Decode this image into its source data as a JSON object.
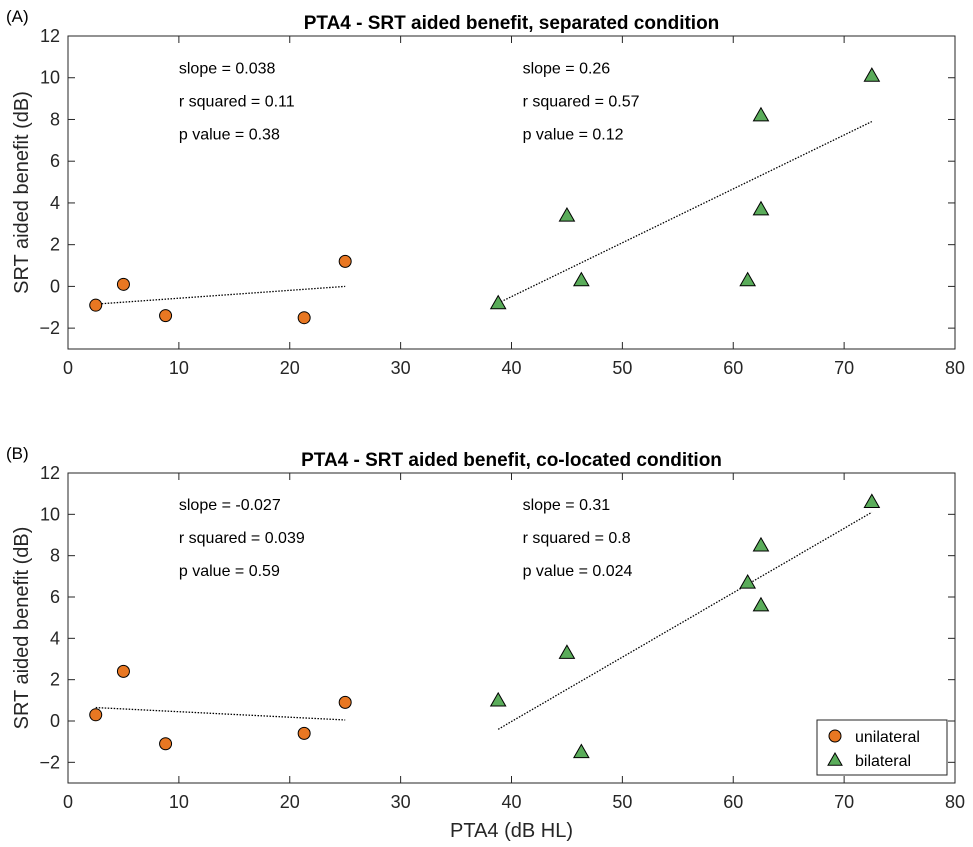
{
  "chart_data": [
    {
      "type": "scatter",
      "panel_label": "(A)",
      "title": "PTA4 - SRT aided benefit, separated condition",
      "xlabel": "",
      "ylabel": "SRT aided benefit (dB)",
      "xlim": [
        0,
        80
      ],
      "ylim": [
        -3,
        12
      ],
      "xticks": [
        0,
        10,
        20,
        30,
        40,
        50,
        60,
        70,
        80
      ],
      "yticks": [
        -2,
        0,
        2,
        4,
        6,
        8,
        10,
        12
      ],
      "grid": false,
      "series": [
        {
          "name": "unilateral",
          "marker": "circle",
          "color": "#e87722",
          "points": [
            [
              2.5,
              -0.9
            ],
            [
              5,
              0.1
            ],
            [
              8.8,
              -1.4
            ],
            [
              21.3,
              -1.5
            ],
            [
              25,
              1.2
            ]
          ],
          "fit": {
            "x": [
              2.5,
              25
            ],
            "y": [
              -0.85,
              0.0
            ]
          },
          "stats": [
            "slope = 0.038",
            "r squared = 0.11",
            "p value = 0.38"
          ],
          "stats_pos": [
            10,
            10.2
          ]
        },
        {
          "name": "bilateral",
          "marker": "triangle",
          "color": "#5aac5a",
          "points": [
            [
              38.8,
              -0.8
            ],
            [
              45,
              3.4
            ],
            [
              46.3,
              0.3
            ],
            [
              61.3,
              0.3
            ],
            [
              62.5,
              8.2
            ],
            [
              62.5,
              3.7
            ],
            [
              72.5,
              10.1
            ]
          ],
          "fit": {
            "x": [
              38.8,
              72.5
            ],
            "y": [
              -0.8,
              7.9
            ]
          },
          "stats": [
            "slope = 0.26",
            "r squared = 0.57",
            "p value = 0.12"
          ],
          "stats_pos": [
            41,
            10.2
          ]
        }
      ]
    },
    {
      "type": "scatter",
      "panel_label": "(B)",
      "title": "PTA4 - SRT aided benefit, co-located condition",
      "xlabel": "PTA4 (dB HL)",
      "ylabel": "SRT aided benefit (dB)",
      "xlim": [
        0,
        80
      ],
      "ylim": [
        -3,
        12
      ],
      "xticks": [
        0,
        10,
        20,
        30,
        40,
        50,
        60,
        70,
        80
      ],
      "yticks": [
        -2,
        0,
        2,
        4,
        6,
        8,
        10,
        12
      ],
      "grid": false,
      "legend": {
        "placement": "bottom-right",
        "entries": [
          "unilateral",
          "bilateral"
        ]
      },
      "series": [
        {
          "name": "unilateral",
          "marker": "circle",
          "color": "#e87722",
          "points": [
            [
              2.5,
              0.3
            ],
            [
              5,
              2.4
            ],
            [
              8.8,
              -1.1
            ],
            [
              21.3,
              -0.6
            ],
            [
              25,
              0.9
            ]
          ],
          "fit": {
            "x": [
              2.5,
              25
            ],
            "y": [
              0.65,
              0.05
            ]
          },
          "stats": [
            "slope = -0.027",
            "r squared = 0.039",
            "p value = 0.59"
          ],
          "stats_pos": [
            10,
            10.2
          ]
        },
        {
          "name": "bilateral",
          "marker": "triangle",
          "color": "#5aac5a",
          "points": [
            [
              38.8,
              1.0
            ],
            [
              45,
              3.3
            ],
            [
              46.3,
              -1.5
            ],
            [
              61.3,
              6.7
            ],
            [
              62.5,
              8.5
            ],
            [
              62.5,
              5.6
            ],
            [
              72.5,
              10.6
            ]
          ],
          "fit": {
            "x": [
              38.8,
              72.5
            ],
            "y": [
              -0.4,
              10.1
            ]
          },
          "stats": [
            "slope = 0.31",
            "r squared = 0.8",
            "p value = 0.024"
          ],
          "stats_pos": [
            41,
            10.2
          ]
        }
      ]
    }
  ]
}
